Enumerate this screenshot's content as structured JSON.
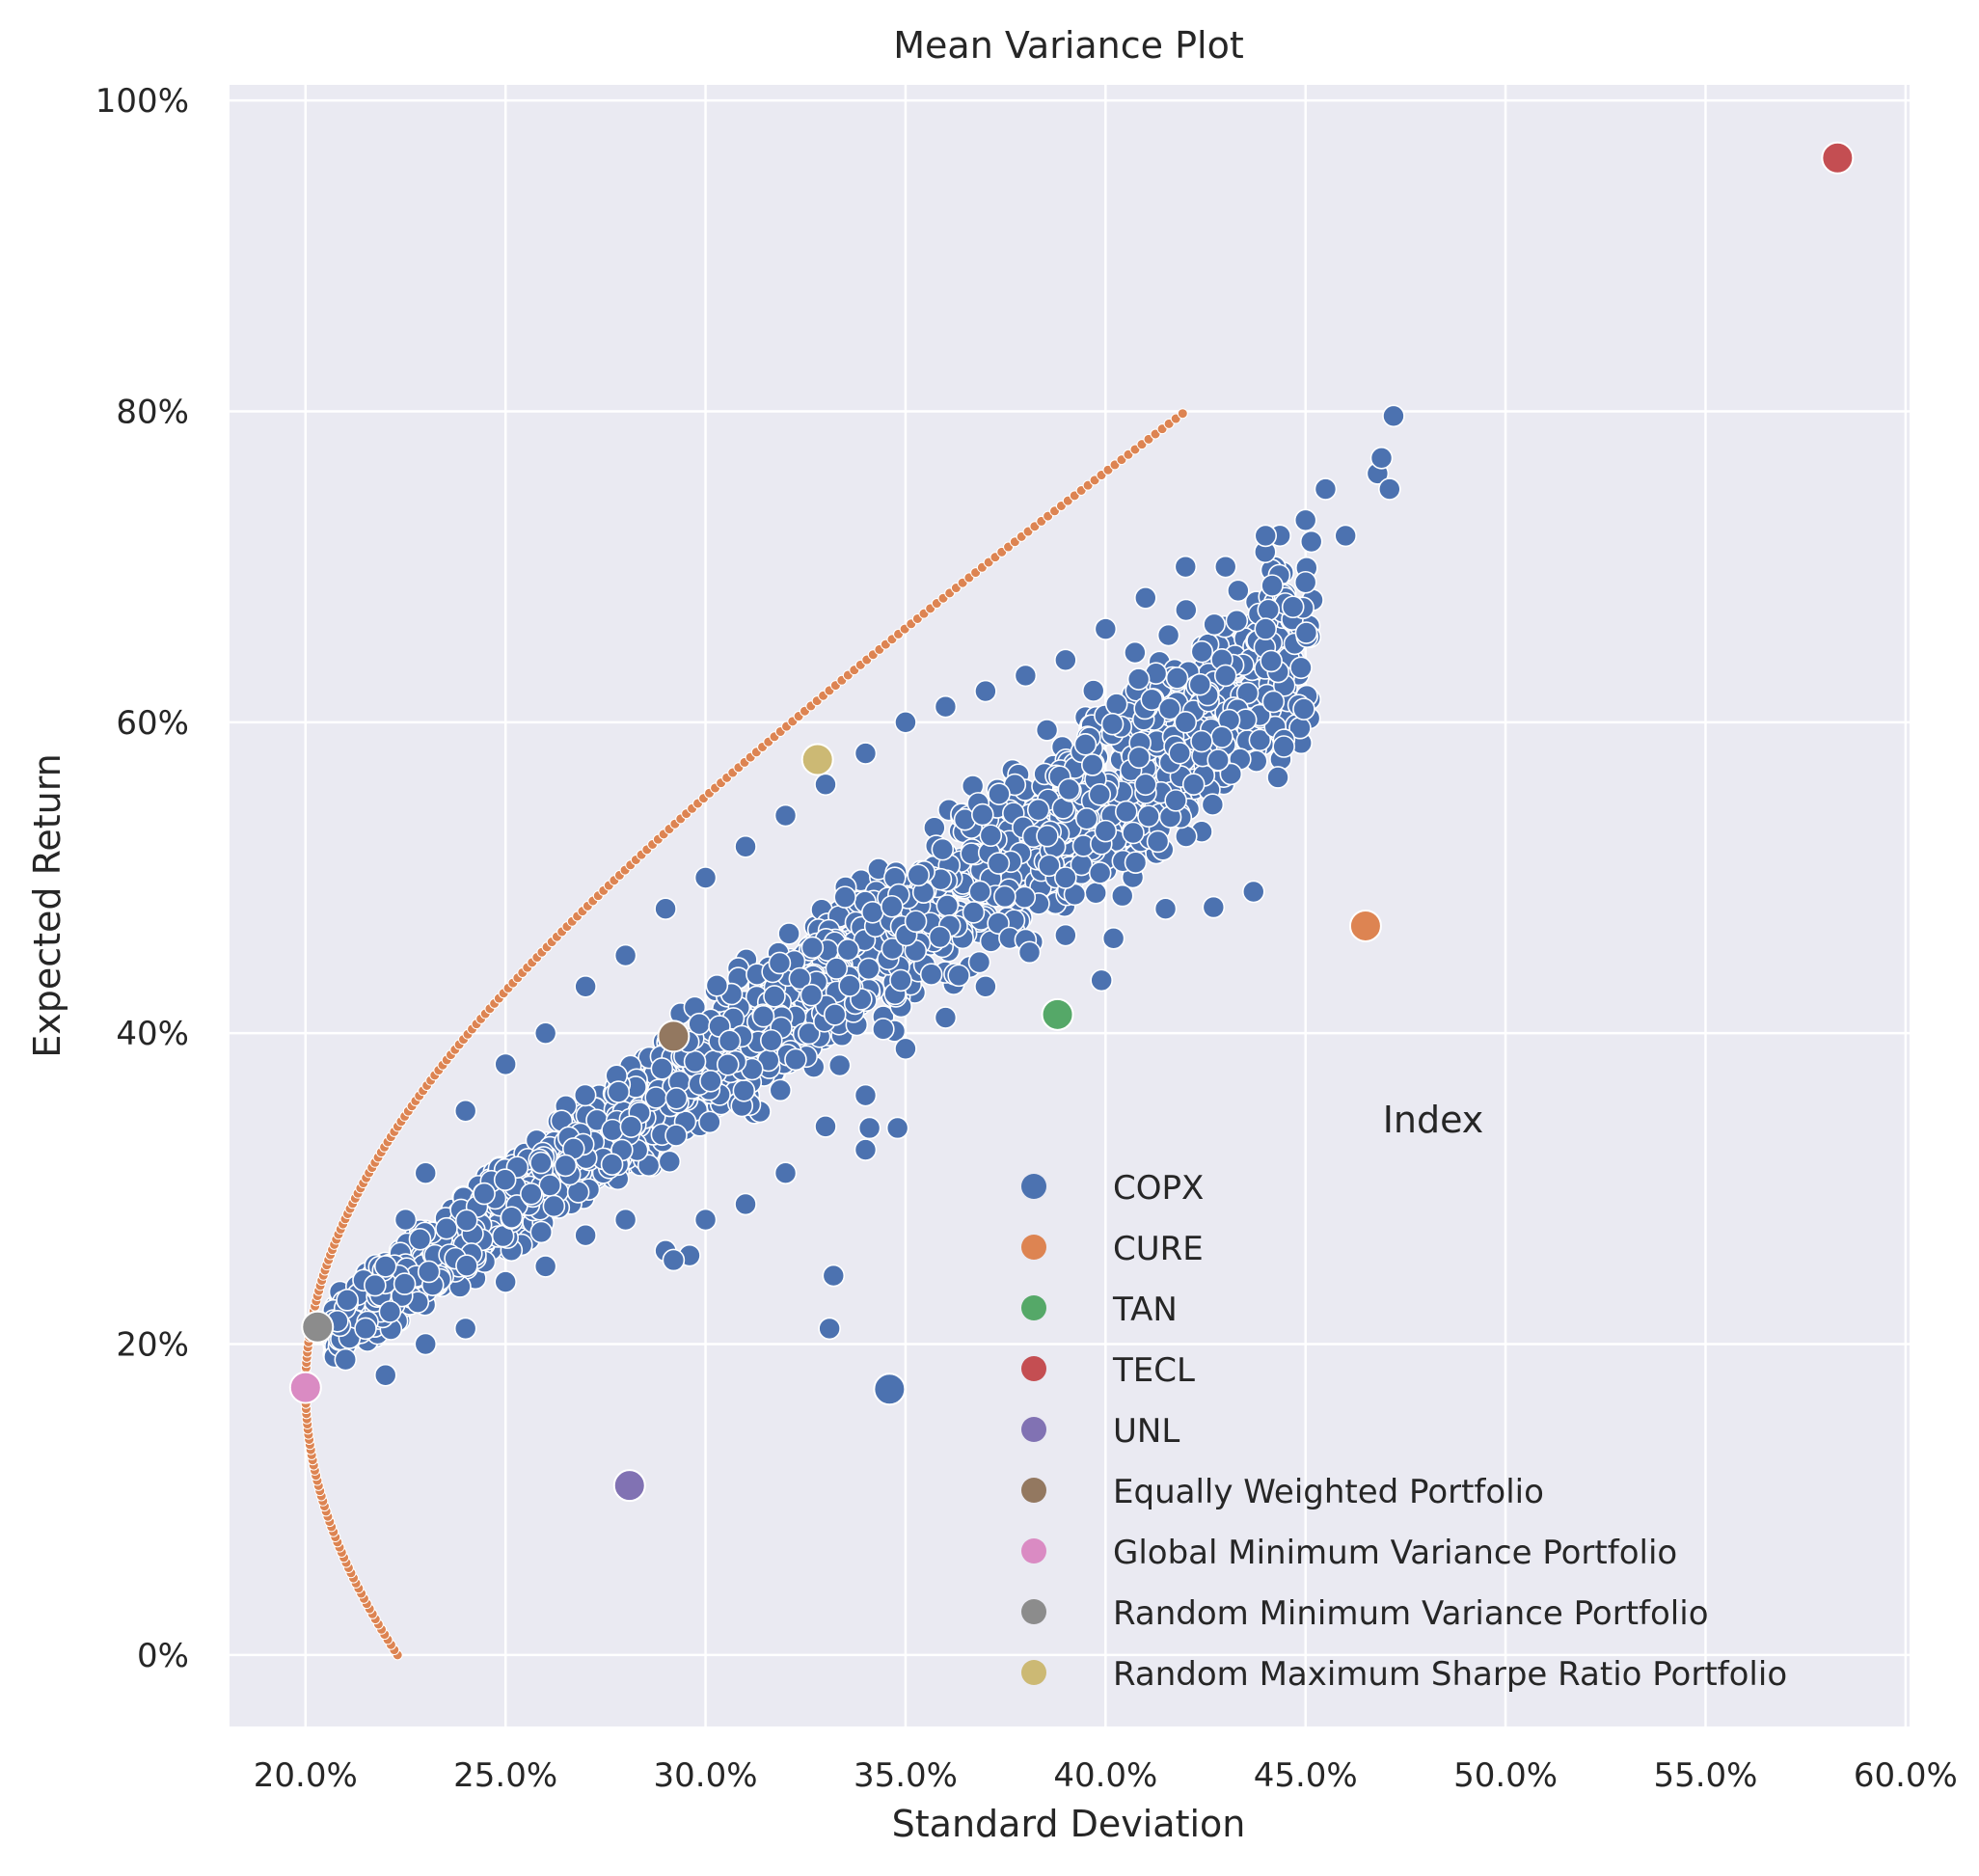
{
  "chart_data": {
    "type": "scatter",
    "title": "Mean Variance Plot",
    "xlabel": "Standard Deviation",
    "ylabel": "Expected Return",
    "xlim": [
      0.181,
      0.601
    ],
    "ylim": [
      -0.046,
      1.01
    ],
    "x_ticks": [
      0.2,
      0.25,
      0.3,
      0.35,
      0.4,
      0.45,
      0.5,
      0.55,
      0.6
    ],
    "x_tick_labels": [
      "20.0%",
      "25.0%",
      "30.0%",
      "35.0%",
      "40.0%",
      "45.0%",
      "50.0%",
      "55.0%",
      "60.0%"
    ],
    "y_ticks": [
      0.0,
      0.2,
      0.4,
      0.6,
      0.8,
      1.0
    ],
    "y_tick_labels": [
      "0%",
      "20%",
      "40%",
      "60%",
      "80%",
      "100%"
    ],
    "grid": true,
    "background": "#eaeaf2",
    "legend": {
      "title": "Index",
      "position": "lower-right",
      "entries": [
        {
          "label": "COPX",
          "color": "#4c72b0"
        },
        {
          "label": "CURE",
          "color": "#dd8452"
        },
        {
          "label": "TAN",
          "color": "#55a868"
        },
        {
          "label": "TECL",
          "color": "#c44e52"
        },
        {
          "label": "UNL",
          "color": "#8172b3"
        },
        {
          "label": "Equally Weighted Portfolio",
          "color": "#937860"
        },
        {
          "label": "Global Minimum Variance Portfolio",
          "color": "#da8bc3"
        },
        {
          "label": "Random Minimum Variance Portfolio",
          "color": "#8c8c8c"
        },
        {
          "label": "Random Maximum Sharpe Ratio Portfolio",
          "color": "#ccb974"
        }
      ]
    },
    "key_points": [
      {
        "label": "COPX",
        "x": 0.346,
        "y": 0.171,
        "color": "#4c72b0"
      },
      {
        "label": "CURE",
        "x": 0.465,
        "y": 0.469,
        "color": "#dd8452"
      },
      {
        "label": "TAN",
        "x": 0.388,
        "y": 0.412,
        "color": "#55a868"
      },
      {
        "label": "TECL",
        "x": 0.583,
        "y": 0.963,
        "color": "#c44e52"
      },
      {
        "label": "UNL",
        "x": 0.281,
        "y": 0.109,
        "color": "#8172b3"
      },
      {
        "label": "Equally Weighted Portfolio",
        "x": 0.292,
        "y": 0.398,
        "color": "#937860"
      },
      {
        "label": "Global Minimum Variance Portfolio",
        "x": 0.2,
        "y": 0.172,
        "color": "#da8bc3"
      },
      {
        "label": "Random Minimum Variance Portfolio",
        "x": 0.203,
        "y": 0.211,
        "color": "#8c8c8c"
      },
      {
        "label": "Random Maximum Sharpe Ratio Portfolio",
        "x": 0.328,
        "y": 0.576,
        "color": "#ccb974"
      }
    ],
    "frontier": {
      "color": "#dd8452",
      "y_range": [
        0.0,
        0.8
      ],
      "min_variance_point": {
        "x": 0.2,
        "y": 0.172
      },
      "end_points": [
        {
          "x": 0.223,
          "y": 0.0
        },
        {
          "x": 0.42,
          "y": 0.8
        }
      ]
    },
    "random_portfolios": {
      "color": "#4c72b0",
      "description_points": [
        [
          0.21,
          0.19
        ],
        [
          0.215,
          0.21
        ],
        [
          0.22,
          0.25
        ],
        [
          0.225,
          0.28
        ],
        [
          0.23,
          0.31
        ],
        [
          0.24,
          0.35
        ],
        [
          0.25,
          0.38
        ],
        [
          0.26,
          0.4
        ],
        [
          0.27,
          0.43
        ],
        [
          0.28,
          0.45
        ],
        [
          0.29,
          0.48
        ],
        [
          0.3,
          0.5
        ],
        [
          0.31,
          0.52
        ],
        [
          0.32,
          0.54
        ],
        [
          0.33,
          0.56
        ],
        [
          0.34,
          0.58
        ],
        [
          0.35,
          0.6
        ],
        [
          0.36,
          0.61
        ],
        [
          0.37,
          0.62
        ],
        [
          0.38,
          0.63
        ],
        [
          0.39,
          0.64
        ],
        [
          0.4,
          0.66
        ],
        [
          0.41,
          0.68
        ],
        [
          0.42,
          0.7
        ],
        [
          0.43,
          0.7
        ],
        [
          0.44,
          0.72
        ],
        [
          0.45,
          0.73
        ],
        [
          0.455,
          0.75
        ],
        [
          0.468,
          0.76
        ],
        [
          0.469,
          0.77
        ],
        [
          0.471,
          0.75
        ],
        [
          0.472,
          0.797
        ],
        [
          0.22,
          0.18
        ],
        [
          0.23,
          0.2
        ],
        [
          0.24,
          0.21
        ],
        [
          0.25,
          0.24
        ],
        [
          0.26,
          0.25
        ],
        [
          0.27,
          0.27
        ],
        [
          0.28,
          0.28
        ],
        [
          0.29,
          0.26
        ],
        [
          0.3,
          0.28
        ],
        [
          0.31,
          0.29
        ],
        [
          0.32,
          0.31
        ],
        [
          0.33,
          0.34
        ],
        [
          0.34,
          0.36
        ],
        [
          0.35,
          0.39
        ],
        [
          0.36,
          0.41
        ],
        [
          0.37,
          0.43
        ],
        [
          0.38,
          0.46
        ],
        [
          0.39,
          0.5
        ],
        [
          0.4,
          0.53
        ],
        [
          0.41,
          0.56
        ],
        [
          0.42,
          0.6
        ],
        [
          0.43,
          0.63
        ],
        [
          0.44,
          0.66
        ],
        [
          0.45,
          0.69
        ],
        [
          0.46,
          0.72
        ],
        [
          0.415,
          0.48
        ],
        [
          0.427,
          0.481
        ],
        [
          0.437,
          0.491
        ],
        [
          0.402,
          0.461
        ],
        [
          0.399,
          0.434
        ],
        [
          0.39,
          0.463
        ],
        [
          0.381,
          0.452
        ],
        [
          0.348,
          0.339
        ],
        [
          0.341,
          0.339
        ],
        [
          0.34,
          0.325
        ],
        [
          0.332,
          0.244
        ],
        [
          0.331,
          0.21
        ],
        [
          0.296,
          0.257
        ],
        [
          0.292,
          0.254
        ]
      ]
    }
  }
}
